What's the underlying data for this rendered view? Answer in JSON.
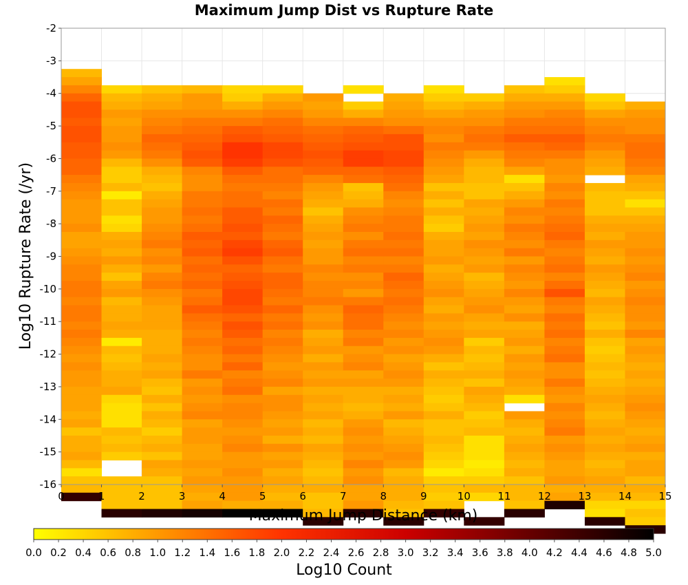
{
  "chart_data": {
    "type": "heatmap",
    "title": "Maximum Jump Dist vs Rupture Rate",
    "xlabel": "Maximum Jump Distance (km)",
    "ylabel": "Log10 Rupture Rate (/yr)",
    "xlim": [
      0,
      15
    ],
    "ylim": [
      -16,
      -2
    ],
    "x_ticks": [
      "0",
      "1",
      "2",
      "3",
      "4",
      "5",
      "6",
      "7",
      "8",
      "9",
      "10",
      "11",
      "12",
      "13",
      "14",
      "15"
    ],
    "y_ticks": [
      "-2",
      "-3",
      "-4",
      "-5",
      "-6",
      "-7",
      "-8",
      "-9",
      "-10",
      "-11",
      "-12",
      "-13",
      "-14",
      "-15",
      "-16"
    ],
    "grid": true,
    "x_bin_edges": [
      0,
      1,
      2,
      3,
      4,
      5,
      6,
      7,
      8,
      9,
      10,
      11,
      12,
      13,
      14,
      15
    ],
    "y_bin_width": 0.25,
    "colorbar": {
      "label": "Log10 Count",
      "range": [
        0.0,
        5.0
      ],
      "colormap": [
        "#ffff00",
        "#ff9900",
        "#ff3300",
        "#cc0000",
        "#660000",
        "#000000"
      ],
      "ticks": [
        "0.0",
        "0.2",
        "0.4",
        "0.6",
        "0.8",
        "1.0",
        "1.2",
        "1.4",
        "1.6",
        "1.8",
        "2.0",
        "2.2",
        "2.4",
        "2.6",
        "2.8",
        "3.0",
        "3.2",
        "3.4",
        "3.6",
        "3.8",
        "4.0",
        "4.2",
        "4.4",
        "4.6",
        "4.8",
        "5.0"
      ]
    },
    "columns": [
      {
        "x": 0.5,
        "y_top": -3.25,
        "values": [
          0.7,
          0.9,
          1.2,
          1.5,
          1.7,
          1.7,
          1.6,
          1.7,
          1.7,
          1.6,
          1.6,
          1.5,
          1.5,
          1.3,
          1.2,
          1.1,
          1.0,
          1.0,
          1.0,
          1.1,
          0.9,
          0.9,
          1.0,
          1.1,
          1.2,
          1.2,
          1.3,
          1.3,
          1.2,
          1.3,
          1.3,
          1.2,
          1.3,
          1.2,
          1.1,
          1.0,
          1.1,
          1.0,
          1.0,
          0.9,
          0.9,
          0.9,
          0.8,
          0.9,
          0.6,
          0.8,
          0.8,
          0.9,
          0.7,
          0.3,
          0.6,
          0.7,
          4.5
        ]
      },
      {
        "x": 1.5,
        "y_top": -3.75,
        "values": [
          0.4,
          0.7,
          0.8,
          1.0,
          0.9,
          1.0,
          1.0,
          1.1,
          1.0,
          0.7,
          0.5,
          0.5,
          0.7,
          0.2,
          0.6,
          0.6,
          0.3,
          0.4,
          0.8,
          0.9,
          0.8,
          1.0,
          0.8,
          0.6,
          0.9,
          1.0,
          0.7,
          0.8,
          0.8,
          0.9,
          0.8,
          0.2,
          0.7,
          0.6,
          0.7,
          0.8,
          0.8,
          0.9,
          0.4,
          0.3,
          0.3,
          0.3,
          0.7,
          0.6,
          0.7,
          0.5,
          null,
          null,
          0.6,
          0.6,
          0.6,
          0.6,
          4.6
        ]
      },
      {
        "x": 2.5,
        "y_top": -3.75,
        "values": [
          0.6,
          0.8,
          0.9,
          1.1,
          1.2,
          1.3,
          1.5,
          1.4,
          1.3,
          1.1,
          0.8,
          0.7,
          0.6,
          0.8,
          0.9,
          1.0,
          1.0,
          1.1,
          1.2,
          1.3,
          1.1,
          1.2,
          1.0,
          1.2,
          1.3,
          1.1,
          1.0,
          0.9,
          0.9,
          0.9,
          0.8,
          0.8,
          0.8,
          0.9,
          0.8,
          0.9,
          0.7,
          0.6,
          0.8,
          0.6,
          0.8,
          0.7,
          0.5,
          0.7,
          0.8,
          0.6,
          0.9,
          0.8,
          0.6,
          0.6,
          0.6,
          0.6,
          4.7
        ]
      },
      {
        "x": 3.5,
        "y_top": -3.75,
        "values": [
          0.7,
          1.0,
          1.0,
          1.1,
          1.3,
          1.4,
          1.5,
          1.6,
          1.7,
          1.6,
          1.2,
          1.1,
          1.1,
          1.3,
          1.3,
          1.4,
          1.3,
          1.4,
          1.6,
          1.5,
          1.6,
          1.4,
          1.5,
          1.4,
          1.5,
          1.3,
          1.4,
          1.6,
          1.4,
          1.3,
          1.2,
          1.3,
          1.2,
          1.1,
          1.1,
          1.3,
          1.0,
          1.1,
          1.0,
          1.1,
          1.2,
          0.9,
          1.0,
          1.0,
          0.9,
          0.9,
          1.0,
          0.9,
          1.0,
          0.9,
          0.8,
          0.9,
          4.8
        ]
      },
      {
        "x": 4.5,
        "y_top": -3.75,
        "values": [
          0.4,
          0.5,
          0.8,
          1.1,
          1.3,
          1.6,
          1.7,
          2.0,
          2.0,
          1.9,
          1.6,
          1.4,
          1.3,
          1.4,
          1.4,
          1.6,
          1.6,
          1.7,
          1.6,
          1.8,
          1.9,
          1.7,
          1.5,
          1.6,
          1.7,
          1.8,
          1.8,
          1.7,
          1.5,
          1.7,
          1.6,
          1.4,
          1.5,
          1.3,
          1.5,
          1.2,
          1.3,
          1.4,
          1.1,
          1.2,
          1.2,
          1.1,
          1.0,
          1.1,
          1.2,
          1.0,
          1.0,
          1.1,
          1.0,
          1.0,
          1.0,
          0.8,
          5.0
        ]
      },
      {
        "x": 5.5,
        "y_top": -3.75,
        "values": [
          0.4,
          0.8,
          1.0,
          1.2,
          1.4,
          1.5,
          1.6,
          1.8,
          1.8,
          1.7,
          1.4,
          1.4,
          1.3,
          1.2,
          1.4,
          1.3,
          1.5,
          1.4,
          1.3,
          1.5,
          1.6,
          1.4,
          1.3,
          1.5,
          1.5,
          1.4,
          1.3,
          1.5,
          1.3,
          1.4,
          1.2,
          1.3,
          1.2,
          1.1,
          1.0,
          1.1,
          1.2,
          0.9,
          1.1,
          1.1,
          1.0,
          0.9,
          1.0,
          0.8,
          1.1,
          0.9,
          1.0,
          0.8,
          0.9,
          0.8,
          0.7,
          0.8,
          5.0
        ]
      },
      {
        "x": 6.5,
        "y_top": -4.0,
        "values": [
          1.0,
          0.9,
          1.0,
          1.2,
          1.4,
          1.5,
          1.6,
          1.7,
          1.6,
          1.5,
          1.2,
          1.0,
          0.9,
          0.8,
          0.6,
          0.8,
          0.9,
          1.0,
          0.9,
          1.0,
          1.0,
          1.2,
          1.1,
          1.2,
          1.2,
          1.3,
          1.1,
          1.0,
          1.1,
          0.8,
          0.9,
          1.0,
          0.8,
          1.0,
          0.9,
          1.0,
          0.8,
          0.9,
          0.8,
          0.9,
          0.7,
          0.8,
          0.7,
          0.9,
          0.8,
          0.7,
          0.6,
          0.7,
          0.8,
          0.6,
          0.6,
          0.7,
          4.6
        ]
      },
      {
        "x": 7.5,
        "y_top": -3.75,
        "values": [
          0.3,
          null,
          0.5,
          0.8,
          1.2,
          1.5,
          1.6,
          1.7,
          1.9,
          1.9,
          1.5,
          1.4,
          0.6,
          0.7,
          0.8,
          1.1,
          1.2,
          1.3,
          1.1,
          1.3,
          1.4,
          1.2,
          1.3,
          1.1,
          1.2,
          1.0,
          1.3,
          1.5,
          1.4,
          1.4,
          1.2,
          1.3,
          1.0,
          1.1,
          1.2,
          0.9,
          1.0,
          0.8,
          0.8,
          0.7,
          0.8,
          1.0,
          1.1,
          1.0,
          1.1,
          1.0,
          1.2,
          1.0,
          1.1,
          0.9,
          0.9,
          1.0,
          4.6
        ]
      },
      {
        "x": 8.5,
        "y_top": -4.0,
        "values": [
          0.8,
          0.9,
          1.0,
          1.1,
          1.4,
          1.7,
          1.7,
          1.8,
          1.8,
          1.6,
          1.5,
          1.4,
          1.2,
          1.1,
          1.2,
          1.3,
          1.3,
          1.4,
          1.3,
          1.4,
          1.2,
          1.3,
          1.5,
          1.4,
          1.3,
          1.4,
          1.3,
          1.2,
          1.1,
          1.2,
          1.0,
          1.1,
          0.9,
          1.0,
          1.1,
          1.0,
          0.8,
          0.9,
          0.8,
          1.0,
          0.7,
          0.8,
          0.9,
          1.0,
          1.1,
          1.0,
          0.7,
          0.8,
          0.8,
          0.8,
          0.7,
          0.6,
          4.6
        ]
      },
      {
        "x": 9.5,
        "y_top": -3.75,
        "values": [
          0.3,
          0.5,
          0.7,
          0.9,
          1.1,
          1.2,
          1.1,
          1.3,
          1.2,
          1.1,
          1.0,
          0.9,
          0.6,
          0.8,
          0.6,
          0.8,
          0.6,
          0.5,
          0.8,
          0.9,
          0.9,
          1.0,
          0.8,
          0.9,
          1.0,
          1.1,
          0.9,
          0.8,
          1.0,
          0.9,
          1.0,
          1.1,
          1.0,
          0.8,
          0.6,
          0.8,
          0.7,
          0.6,
          0.5,
          0.6,
          0.8,
          0.6,
          0.6,
          0.7,
          0.6,
          0.5,
          0.4,
          0.2,
          0.5,
          0.6,
          0.5,
          0.6,
          4.5
        ]
      },
      {
        "x": 10.5,
        "y_top": -4.0,
        "values": [
          0.5,
          0.8,
          1.0,
          1.1,
          1.3,
          1.4,
          1.3,
          1.0,
          0.8,
          0.7,
          0.7,
          0.6,
          0.6,
          0.9,
          0.8,
          0.9,
          1.0,
          0.9,
          1.1,
          1.0,
          0.9,
          1.0,
          0.7,
          0.8,
          0.9,
          1.0,
          1.1,
          0.9,
          0.8,
          0.9,
          0.5,
          0.7,
          0.6,
          0.7,
          0.8,
          0.6,
          0.9,
          0.8,
          0.7,
          0.5,
          0.6,
          0.7,
          0.3,
          0.3,
          0.3,
          0.2,
          0.3,
          0.5,
          0.7,
          0.4,
          null,
          null,
          4.5
        ]
      },
      {
        "x": 11.5,
        "y_top": -3.75,
        "values": [
          0.6,
          0.8,
          1.0,
          1.1,
          1.3,
          1.4,
          1.6,
          1.4,
          1.3,
          1.2,
          0.9,
          0.3,
          0.6,
          0.8,
          1.0,
          1.2,
          1.1,
          1.3,
          1.2,
          1.1,
          1.3,
          1.0,
          1.2,
          1.1,
          1.0,
          1.2,
          1.0,
          0.9,
          1.1,
          0.8,
          0.9,
          1.0,
          0.8,
          1.0,
          0.9,
          1.0,
          0.9,
          0.8,
          0.3,
          null,
          1.0,
          0.8,
          0.7,
          0.8,
          0.9,
          0.8,
          0.7,
          0.8,
          0.6,
          0.7,
          0.7,
          0.6,
          4.6
        ]
      },
      {
        "x": 12.5,
        "y_top": -3.5,
        "values": [
          0.3,
          0.5,
          0.8,
          1.0,
          1.2,
          1.3,
          1.4,
          1.6,
          1.5,
          1.3,
          1.1,
          1.1,
          1.0,
          1.2,
          1.1,
          1.3,
          1.2,
          1.3,
          1.4,
          1.5,
          1.3,
          1.2,
          1.3,
          1.4,
          1.2,
          1.4,
          1.7,
          1.3,
          1.2,
          1.4,
          1.3,
          1.4,
          1.2,
          1.3,
          1.4,
          1.1,
          1.1,
          1.3,
          1.1,
          1.0,
          1.2,
          1.1,
          1.2,
          1.3,
          1.0,
          1.1,
          1.0,
          0.9,
          0.9,
          1.0,
          0.8,
          0.9,
          4.7
        ]
      },
      {
        "x": 13.5,
        "y_top": -4.0,
        "values": [
          0.4,
          0.6,
          0.9,
          1.1,
          1.2,
          1.3,
          1.2,
          1.0,
          0.9,
          0.8,
          null,
          0.7,
          0.6,
          0.6,
          0.6,
          0.8,
          0.9,
          0.8,
          1.0,
          0.9,
          0.8,
          1.0,
          0.9,
          0.8,
          0.7,
          0.9,
          0.8,
          0.7,
          0.6,
          0.8,
          0.6,
          0.5,
          0.6,
          0.7,
          0.6,
          0.7,
          0.8,
          0.9,
          0.8,
          0.7,
          0.8,
          0.9,
          0.8,
          0.9,
          0.8,
          0.7,
          0.8,
          0.9,
          0.8,
          0.7,
          0.4,
          0.3,
          4.6
        ]
      },
      {
        "x": 14.5,
        "y_top": -4.25,
        "values": [
          0.8,
          1.0,
          1.1,
          1.1,
          1.3,
          1.4,
          1.4,
          1.3,
          1.2,
          0.9,
          0.8,
          0.6,
          0.3,
          0.6,
          0.8,
          0.9,
          1.0,
          1.0,
          1.1,
          1.0,
          1.1,
          1.2,
          1.0,
          1.1,
          1.2,
          1.1,
          1.1,
          1.0,
          1.2,
          0.9,
          1.0,
          0.9,
          0.8,
          0.9,
          0.8,
          0.9,
          1.0,
          1.1,
          1.0,
          0.9,
          0.8,
          0.9,
          1.0,
          0.8,
          0.9,
          0.9,
          0.7,
          0.8,
          0.7,
          0.4,
          0.6,
          0.5,
          4.6
        ]
      }
    ]
  }
}
